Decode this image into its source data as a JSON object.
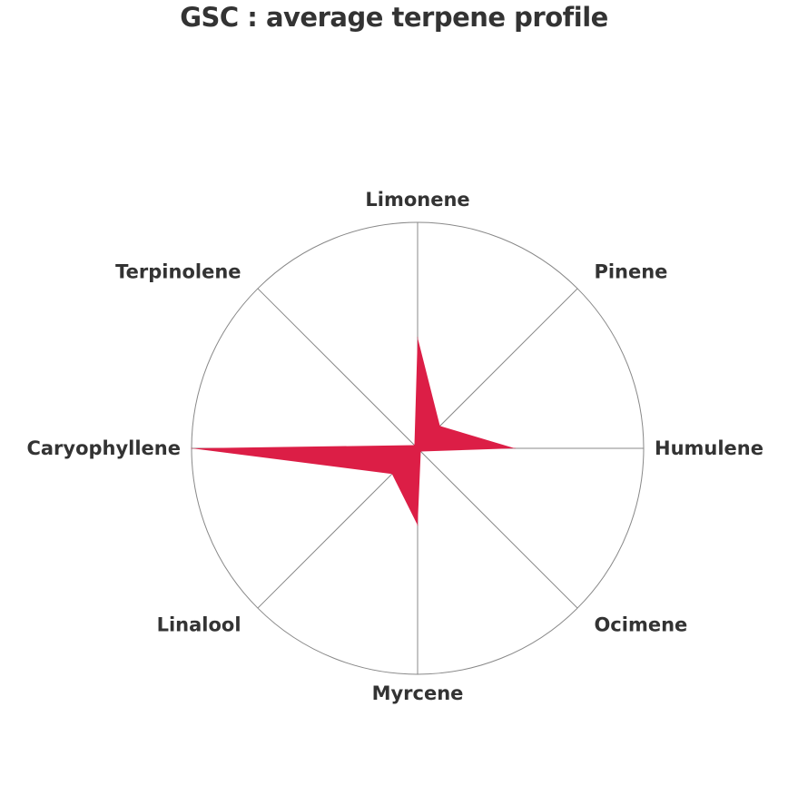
{
  "chart_data": {
    "type": "radar",
    "title": "GSC : average terpene profile",
    "categories": [
      "Limonene",
      "Pinene",
      "Humulene",
      "Ocimene",
      "Myrcene",
      "Linalool",
      "Caryophyllene",
      "Terpinolene"
    ],
    "values": [
      0.49,
      0.14,
      0.43,
      0.02,
      0.34,
      0.16,
      1.0,
      0.02
    ],
    "range": [
      0,
      1
    ],
    "grid": true,
    "fill_color": "#dc1e46",
    "grid_color": "#888888"
  }
}
